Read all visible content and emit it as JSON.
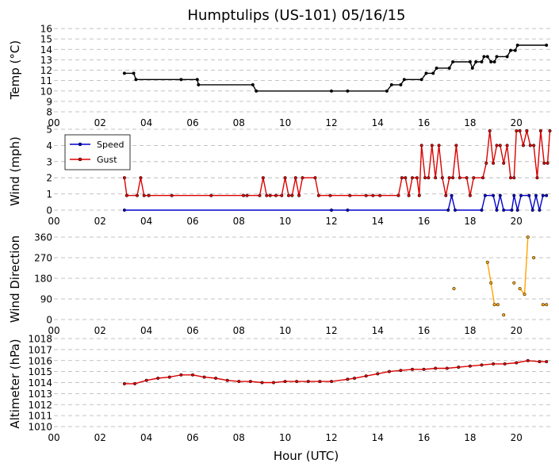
{
  "chart_data": {
    "type": "line",
    "title": "Humptulips (US-101) 05/16/15",
    "xlabel": "Hour (UTC)",
    "x_ticks": [
      "00",
      "02",
      "04",
      "06",
      "08",
      "10",
      "12",
      "14",
      "16",
      "18",
      "20"
    ],
    "xlim": [
      0,
      21.5
    ],
    "panels": [
      {
        "ylabel": "Temp (°C)",
        "ylim": [
          8,
          16
        ],
        "y_ticks": [
          "8",
          "9",
          "10",
          "11",
          "12",
          "13",
          "14",
          "15",
          "16"
        ],
        "grid": "dashed-horizontal",
        "series": [
          {
            "color": "#000000",
            "marker": "dot",
            "points": [
              [
                3.05,
                11.7
              ],
              [
                3.45,
                11.7
              ],
              [
                3.55,
                11.1
              ],
              [
                5.5,
                11.1
              ],
              [
                6.2,
                11.1
              ],
              [
                6.25,
                10.6
              ],
              [
                8.6,
                10.6
              ],
              [
                8.75,
                10.0
              ],
              [
                12.0,
                10.0
              ],
              [
                12.7,
                10.0
              ],
              [
                14.4,
                10.0
              ],
              [
                14.6,
                10.6
              ],
              [
                15.0,
                10.6
              ],
              [
                15.15,
                11.1
              ],
              [
                15.9,
                11.1
              ],
              [
                16.1,
                11.7
              ],
              [
                16.4,
                11.7
              ],
              [
                16.55,
                12.2
              ],
              [
                17.1,
                12.2
              ],
              [
                17.25,
                12.8
              ],
              [
                18.0,
                12.8
              ],
              [
                18.1,
                12.2
              ],
              [
                18.25,
                12.8
              ],
              [
                18.5,
                12.8
              ],
              [
                18.6,
                13.3
              ],
              [
                18.75,
                13.3
              ],
              [
                18.9,
                12.8
              ],
              [
                19.05,
                12.8
              ],
              [
                19.15,
                13.3
              ],
              [
                19.6,
                13.3
              ],
              [
                19.75,
                13.9
              ],
              [
                19.95,
                13.9
              ],
              [
                20.05,
                14.4
              ],
              [
                21.3,
                14.4
              ]
            ]
          }
        ]
      },
      {
        "ylabel": "Wind (mph)",
        "ylim": [
          0,
          5
        ],
        "y_ticks": [
          "0",
          "1",
          "2",
          "3",
          "4",
          "5"
        ],
        "grid": "dashed-horizontal",
        "legend": {
          "position": "top-left",
          "entries": [
            "Speed",
            "Gust"
          ]
        },
        "series": [
          {
            "name": "Speed",
            "color": "#0000cc",
            "marker": "dot",
            "points": [
              [
                3.05,
                0
              ],
              [
                12.0,
                0
              ],
              [
                12.7,
                0
              ],
              [
                17.05,
                0
              ],
              [
                17.2,
                0.9
              ],
              [
                17.35,
                0
              ],
              [
                18.5,
                0
              ],
              [
                18.65,
                0.9
              ],
              [
                19.0,
                0.9
              ],
              [
                19.15,
                0
              ],
              [
                19.3,
                0.9
              ],
              [
                19.45,
                0
              ],
              [
                19.8,
                0
              ],
              [
                19.9,
                0.9
              ],
              [
                20.05,
                0
              ],
              [
                20.2,
                0.9
              ],
              [
                20.55,
                0.9
              ],
              [
                20.7,
                0
              ],
              [
                20.85,
                0.9
              ],
              [
                21.0,
                0
              ],
              [
                21.15,
                0.9
              ],
              [
                21.3,
                0.9
              ]
            ]
          },
          {
            "name": "Gust",
            "color": "#dd0000",
            "marker": "dot",
            "points": [
              [
                3.05,
                2.0
              ],
              [
                3.15,
                0.9
              ],
              [
                3.6,
                0.9
              ],
              [
                3.75,
                2.0
              ],
              [
                3.9,
                0.9
              ],
              [
                4.1,
                0.9
              ],
              [
                5.1,
                0.9
              ],
              [
                6.8,
                0.9
              ],
              [
                8.2,
                0.9
              ],
              [
                8.35,
                0.9
              ],
              [
                8.9,
                0.9
              ],
              [
                9.05,
                2.0
              ],
              [
                9.2,
                0.9
              ],
              [
                9.35,
                0.9
              ],
              [
                9.6,
                0.9
              ],
              [
                9.85,
                0.9
              ],
              [
                10.0,
                2.0
              ],
              [
                10.15,
                0.9
              ],
              [
                10.3,
                0.9
              ],
              [
                10.45,
                2.0
              ],
              [
                10.6,
                0.9
              ],
              [
                10.75,
                2.0
              ],
              [
                11.3,
                2.0
              ],
              [
                11.45,
                0.9
              ],
              [
                11.95,
                0.9
              ],
              [
                12.8,
                0.9
              ],
              [
                13.5,
                0.9
              ],
              [
                13.8,
                0.9
              ],
              [
                14.1,
                0.9
              ],
              [
                14.9,
                0.9
              ],
              [
                15.05,
                2.0
              ],
              [
                15.2,
                2.0
              ],
              [
                15.35,
                0.9
              ],
              [
                15.5,
                2.0
              ],
              [
                15.7,
                2.0
              ],
              [
                15.8,
                0.9
              ],
              [
                15.9,
                4.0
              ],
              [
                16.05,
                2.0
              ],
              [
                16.2,
                2.0
              ],
              [
                16.35,
                4.0
              ],
              [
                16.5,
                2.0
              ],
              [
                16.65,
                4.0
              ],
              [
                16.8,
                2.0
              ],
              [
                16.95,
                0.9
              ],
              [
                17.1,
                2.0
              ],
              [
                17.25,
                2.0
              ],
              [
                17.4,
                4.0
              ],
              [
                17.55,
                2.0
              ],
              [
                17.85,
                2.0
              ],
              [
                18.0,
                0.9
              ],
              [
                18.15,
                2.0
              ],
              [
                18.55,
                2.0
              ],
              [
                18.7,
                2.9
              ],
              [
                18.85,
                4.9
              ],
              [
                19.0,
                2.9
              ],
              [
                19.15,
                4.0
              ],
              [
                19.3,
                4.0
              ],
              [
                19.45,
                2.9
              ],
              [
                19.6,
                4.0
              ],
              [
                19.75,
                2.0
              ],
              [
                19.9,
                2.0
              ],
              [
                20.0,
                4.9
              ],
              [
                20.15,
                4.9
              ],
              [
                20.3,
                4.0
              ],
              [
                20.45,
                4.9
              ],
              [
                20.6,
                4.0
              ],
              [
                20.75,
                4.0
              ],
              [
                20.9,
                2.0
              ],
              [
                21.05,
                4.9
              ],
              [
                21.2,
                2.9
              ],
              [
                21.35,
                2.9
              ],
              [
                21.45,
                4.9
              ]
            ]
          }
        ]
      },
      {
        "ylabel": "Wind Direction",
        "ylim": [
          0,
          360
        ],
        "y_ticks": [
          "0",
          "90",
          "180",
          "270",
          "360"
        ],
        "grid": "dashed-horizontal",
        "series": [
          {
            "color": "#ffa500",
            "marker": "dot",
            "segments": [
              [
                [
                  17.3,
                  135
                ]
              ],
              [
                [
                  18.75,
                  250
                ],
                [
                  18.9,
                  160
                ],
                [
                  19.05,
                  65
                ],
                [
                  19.2,
                  65
                ]
              ],
              [
                [
                  19.45,
                  20
                ]
              ],
              [
                [
                  19.9,
                  160
                ]
              ],
              [
                [
                  20.15,
                  135
                ],
                [
                  20.35,
                  110
                ],
                [
                  20.5,
                  360
                ]
              ],
              [
                [
                  20.75,
                  270
                ]
              ],
              [
                [
                  21.15,
                  65
                ],
                [
                  21.3,
                  65
                ]
              ]
            ]
          }
        ]
      },
      {
        "ylabel": "Altimeter (hPa)",
        "ylim": [
          1010,
          1018
        ],
        "y_ticks": [
          "1010",
          "1011",
          "1012",
          "1013",
          "1014",
          "1015",
          "1016",
          "1017",
          "1018"
        ],
        "grid": "dashed-horizontal",
        "series": [
          {
            "color": "#dd0000",
            "marker": "dot",
            "points": [
              [
                3.05,
                1013.9
              ],
              [
                3.5,
                1013.9
              ],
              [
                4.0,
                1014.2
              ],
              [
                4.5,
                1014.4
              ],
              [
                5.0,
                1014.5
              ],
              [
                5.5,
                1014.7
              ],
              [
                6.0,
                1014.7
              ],
              [
                6.5,
                1014.5
              ],
              [
                7.0,
                1014.4
              ],
              [
                7.5,
                1014.2
              ],
              [
                8.0,
                1014.1
              ],
              [
                8.5,
                1014.1
              ],
              [
                9.0,
                1014.0
              ],
              [
                9.5,
                1014.0
              ],
              [
                10.0,
                1014.1
              ],
              [
                10.5,
                1014.1
              ],
              [
                11.0,
                1014.1
              ],
              [
                11.5,
                1014.1
              ],
              [
                12.0,
                1014.1
              ],
              [
                12.7,
                1014.3
              ],
              [
                13.0,
                1014.4
              ],
              [
                13.5,
                1014.6
              ],
              [
                14.0,
                1014.8
              ],
              [
                14.5,
                1015.0
              ],
              [
                15.0,
                1015.1
              ],
              [
                15.5,
                1015.2
              ],
              [
                16.0,
                1015.2
              ],
              [
                16.5,
                1015.3
              ],
              [
                17.0,
                1015.3
              ],
              [
                17.5,
                1015.4
              ],
              [
                18.0,
                1015.5
              ],
              [
                18.5,
                1015.6
              ],
              [
                19.0,
                1015.7
              ],
              [
                19.5,
                1015.7
              ],
              [
                20.0,
                1015.8
              ],
              [
                20.5,
                1016.0
              ],
              [
                21.0,
                1015.9
              ],
              [
                21.3,
                1015.9
              ]
            ]
          }
        ]
      }
    ]
  }
}
